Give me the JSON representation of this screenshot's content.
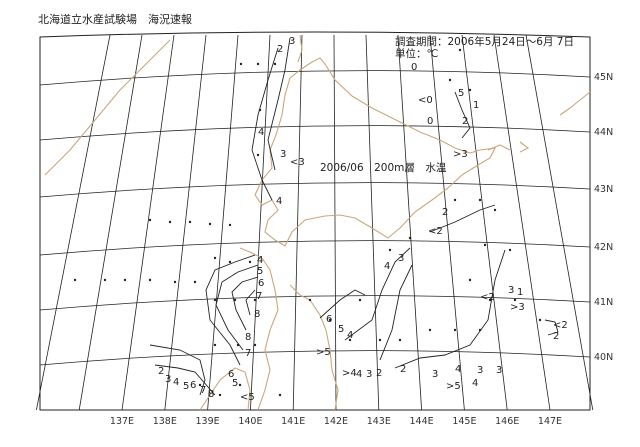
{
  "header": {
    "title": "北海道立水産試験場　海況速報",
    "period": "調査期間：2006年5月24日～6月 7日",
    "unit": "単位：℃"
  },
  "map": {
    "caption": "2006/06　200m層　水温",
    "longitude_labels": [
      "137E",
      "138E",
      "139E",
      "140E",
      "141E",
      "142E",
      "143E",
      "144E",
      "145E",
      "146E",
      "147E"
    ],
    "latitude_labels": [
      "45N",
      "44N",
      "43N",
      "42N",
      "41N",
      "40N"
    ],
    "contour_labels": [
      "2",
      "3",
      "4",
      "3",
      "<3",
      "4",
      "0",
      "<0",
      "1",
      "0",
      "5",
      "2",
      ">3",
      "2",
      "<2",
      "3",
      "4",
      "4",
      "5",
      "6",
      "7",
      "8",
      "8",
      "7",
      "6",
      "5",
      "<5",
      "2",
      "3",
      "4",
      "5",
      "6",
      "7",
      "8",
      "6",
      "5",
      "4",
      ">5",
      ">4",
      "4",
      "3",
      "2",
      "2",
      "3",
      "4",
      "3",
      "4",
      ">5",
      "3",
      "<2",
      "3",
      "1",
      ">3",
      "<2",
      "2"
    ],
    "colors": {
      "coast": "#c9a77a",
      "grid": "#222222",
      "contour": "#222222"
    }
  }
}
